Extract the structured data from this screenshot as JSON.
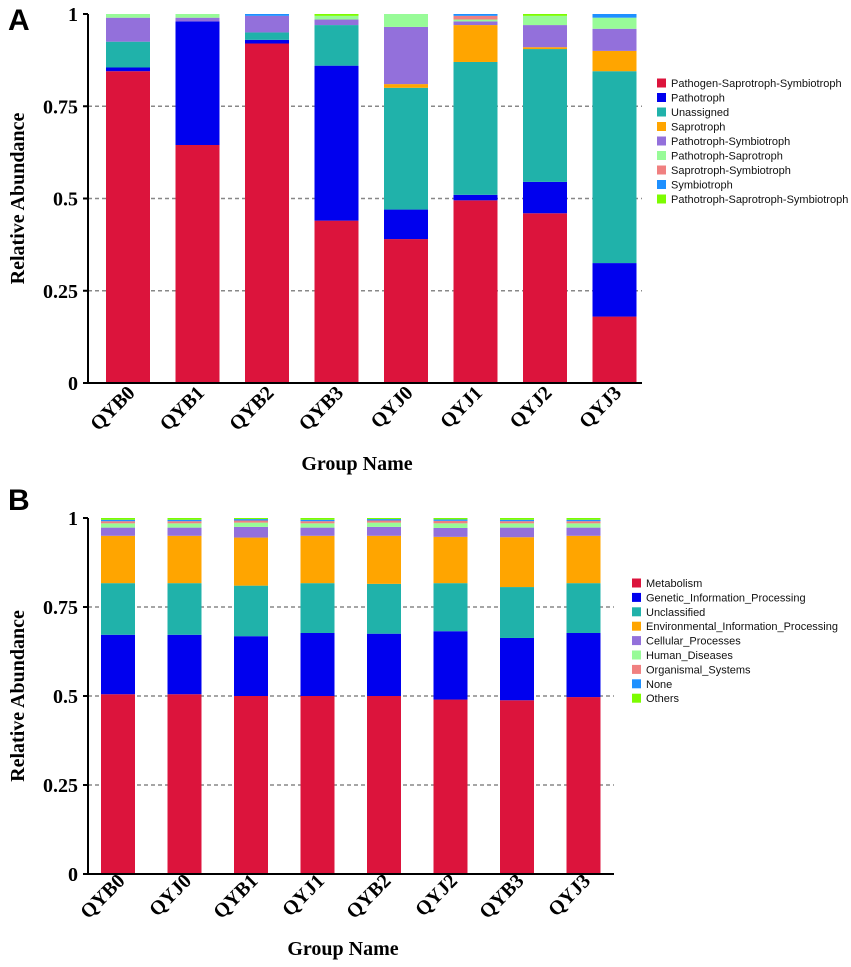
{
  "chart_data": [
    {
      "panel_label": "A",
      "type": "bar",
      "stacked": true,
      "ylabel": "Relative Abundance",
      "xlabel": "Group Name",
      "ylim": [
        0,
        1
      ],
      "yticks": [
        0,
        0.25,
        0.5,
        0.75,
        1
      ],
      "ytick_labels": [
        "0",
        "0.25",
        "0.5",
        "0.75",
        "1"
      ],
      "gridlines": [
        0.25,
        0.5,
        0.75
      ],
      "legend_position": "right",
      "categories": [
        "QYB0",
        "QYB1",
        "QYB2",
        "QYB3",
        "QYJ0",
        "QYJ1",
        "QYJ2",
        "QYJ3"
      ],
      "series": [
        {
          "name": "Pathogen-Saprotroph-Symbiotroph",
          "color": "#DC143C",
          "values": [
            0.845,
            0.645,
            0.92,
            0.44,
            0.39,
            0.495,
            0.46,
            0.18
          ]
        },
        {
          "name": "Pathotroph",
          "color": "#0000EE",
          "values": [
            0.01,
            0.335,
            0.01,
            0.42,
            0.08,
            0.015,
            0.085,
            0.145
          ]
        },
        {
          "name": "Unassigned",
          "color": "#20B2AA",
          "values": [
            0.07,
            0.0,
            0.02,
            0.11,
            0.33,
            0.36,
            0.36,
            0.52
          ]
        },
        {
          "name": "Saprotroph",
          "color": "#FFA500",
          "values": [
            0.0,
            0.0,
            0.0,
            0.0,
            0.01,
            0.1,
            0.005,
            0.055
          ]
        },
        {
          "name": "Pathotroph-Symbiotroph",
          "color": "#9370DB",
          "values": [
            0.065,
            0.01,
            0.045,
            0.015,
            0.155,
            0.01,
            0.06,
            0.06
          ]
        },
        {
          "name": "Pathotroph-Saprotroph",
          "color": "#98FB98",
          "values": [
            0.01,
            0.01,
            0.0,
            0.01,
            0.035,
            0.005,
            0.025,
            0.03
          ]
        },
        {
          "name": "Saprotroph-Symbiotroph",
          "color": "#F08080",
          "values": [
            0.0,
            0.0,
            0.0,
            0.0,
            0.0,
            0.01,
            0.0,
            0.0
          ]
        },
        {
          "name": "Symbiotroph",
          "color": "#1E90FF",
          "values": [
            0.0,
            0.0,
            0.005,
            0.0,
            0.0,
            0.005,
            0.0,
            0.01
          ]
        },
        {
          "name": "Pathotroph-Saprotroph-Symbiotroph",
          "color": "#7CFC00",
          "values": [
            0.0,
            0.0,
            0.0,
            0.005,
            0.0,
            0.0,
            0.005,
            0.0
          ]
        }
      ]
    },
    {
      "panel_label": "B",
      "type": "bar",
      "stacked": true,
      "ylabel": "Relative Abundance",
      "xlabel": "Group Name",
      "ylim": [
        0,
        1
      ],
      "yticks": [
        0,
        0.25,
        0.5,
        0.75,
        1
      ],
      "ytick_labels": [
        "0",
        "0.25",
        "0.5",
        "0.75",
        "1"
      ],
      "gridlines": [
        0.25,
        0.5,
        0.75
      ],
      "legend_position": "right",
      "categories": [
        "QYB0",
        "QYJ0",
        "QYB1",
        "QYJ1",
        "QYB2",
        "QYJ2",
        "QYB3",
        "QYJ3"
      ],
      "series": [
        {
          "name": "Metabolism",
          "color": "#DC143C",
          "values": [
            0.505,
            0.505,
            0.5,
            0.5,
            0.5,
            0.49,
            0.488,
            0.497
          ]
        },
        {
          "name": "Genetic_Information_Processing",
          "color": "#0000EE",
          "values": [
            0.167,
            0.167,
            0.168,
            0.177,
            0.175,
            0.192,
            0.175,
            0.18
          ]
        },
        {
          "name": "Unclassified",
          "color": "#20B2AA",
          "values": [
            0.145,
            0.145,
            0.142,
            0.14,
            0.14,
            0.135,
            0.143,
            0.14
          ]
        },
        {
          "name": "Environmental_Information_Processing",
          "color": "#FFA500",
          "values": [
            0.133,
            0.133,
            0.135,
            0.133,
            0.135,
            0.13,
            0.14,
            0.133
          ]
        },
        {
          "name": "Cellular_Processes",
          "color": "#9370DB",
          "values": [
            0.023,
            0.023,
            0.03,
            0.023,
            0.025,
            0.025,
            0.027,
            0.023
          ]
        },
        {
          "name": "Human_Diseases",
          "color": "#98FB98",
          "values": [
            0.012,
            0.012,
            0.012,
            0.012,
            0.012,
            0.013,
            0.012,
            0.012
          ]
        },
        {
          "name": "Organismal_Systems",
          "color": "#F08080",
          "values": [
            0.006,
            0.006,
            0.006,
            0.006,
            0.006,
            0.007,
            0.006,
            0.006
          ]
        },
        {
          "name": "None",
          "color": "#1E90FF",
          "values": [
            0.004,
            0.004,
            0.004,
            0.004,
            0.004,
            0.004,
            0.004,
            0.004
          ]
        },
        {
          "name": "Others",
          "color": "#7CFC00",
          "values": [
            0.005,
            0.005,
            0.003,
            0.005,
            0.003,
            0.004,
            0.005,
            0.005
          ]
        }
      ]
    }
  ]
}
